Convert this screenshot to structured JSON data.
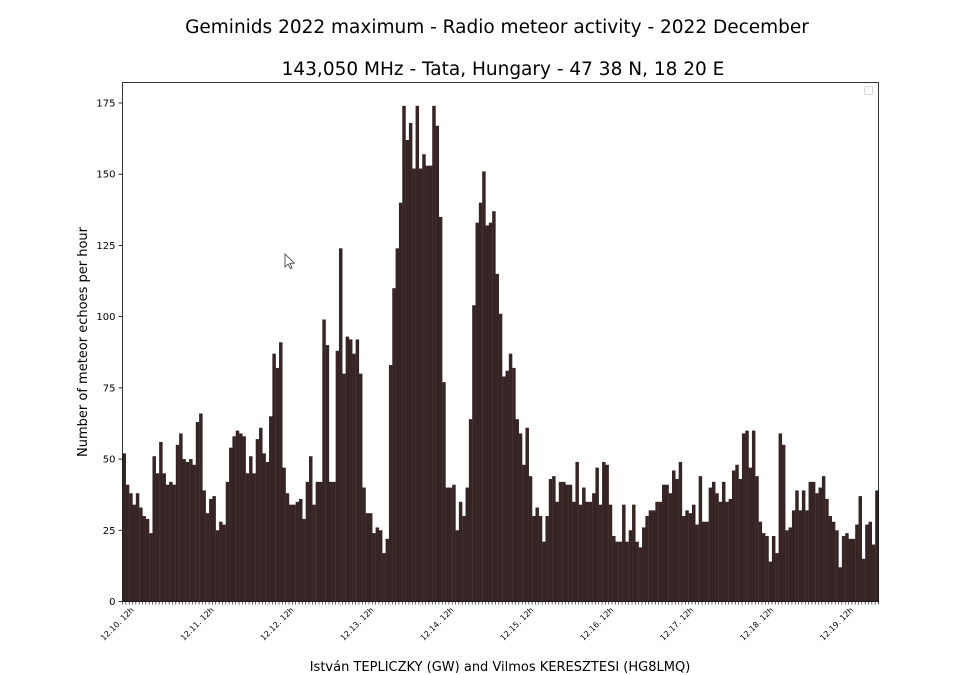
{
  "chart_data": {
    "type": "bar",
    "title": "Geminids 2022 maximum - Radio meteor activity - 2022 December",
    "subtitle": "143,050 MHz - Tata, Hungary - 47 38 N, 18 20 E",
    "xlabel": "István TEPLICZKY (GW) and Vilmos KERESZTESI (HG8LMQ)",
    "ylabel": "Number of meteor echoes per hour",
    "ylim": [
      0,
      175
    ],
    "yticks": [
      0,
      25,
      50,
      75,
      100,
      125,
      150,
      175
    ],
    "xticks": [
      "12.10. 12h",
      "12.11. 12h",
      "12.12. 12h",
      "12.13. 12h",
      "12.14. 12h",
      "12.15. 12h",
      "12.16. 12h",
      "12.17. 12h",
      "12.18. 12h",
      "12.19. 12h"
    ],
    "xtick_bar_index": [
      0,
      24,
      48,
      72,
      96,
      120,
      144,
      168,
      192,
      216
    ],
    "legend": "top-right (empty)",
    "bar_color": "#362524",
    "values": [
      52,
      41,
      38,
      34,
      38,
      33,
      30,
      29,
      24,
      51,
      45,
      56,
      45,
      41,
      42,
      41,
      55,
      59,
      50,
      49,
      50,
      48,
      63,
      66,
      39,
      31,
      36,
      37,
      25,
      28,
      27,
      42,
      54,
      58,
      60,
      59,
      58,
      45,
      51,
      45,
      57,
      61,
      52,
      49,
      65,
      87,
      82,
      91,
      47,
      38,
      34,
      34,
      35,
      36,
      29,
      42,
      51,
      34,
      42,
      42,
      99,
      90,
      42,
      42,
      88,
      124,
      80,
      93,
      92,
      87,
      92,
      80,
      40,
      31,
      31,
      24,
      26,
      25,
      17,
      22,
      83,
      110,
      124,
      140,
      174,
      162,
      168,
      152,
      174,
      152,
      157,
      153,
      153,
      174,
      167,
      135,
      77,
      40,
      40,
      41,
      25,
      35,
      30,
      40,
      64,
      104,
      133,
      140,
      151,
      132,
      133,
      137,
      115,
      101,
      79,
      81,
      87,
      82,
      64,
      59,
      48,
      61,
      44,
      30,
      33,
      30,
      21,
      30,
      43,
      44,
      35,
      42,
      42,
      41,
      41,
      35,
      49,
      34,
      40,
      35,
      35,
      38,
      47,
      34,
      49,
      48,
      34,
      23,
      21,
      21,
      34,
      21,
      25,
      34,
      21,
      19,
      26,
      30,
      32,
      32,
      35,
      35,
      41,
      41,
      38,
      46,
      43,
      49,
      30,
      32,
      31,
      34,
      27,
      44,
      28,
      28,
      40,
      42,
      38,
      35,
      42,
      35,
      36,
      46,
      48,
      43,
      59,
      60,
      47,
      60,
      44,
      28,
      24,
      23,
      14,
      23,
      17,
      59,
      55,
      25,
      26,
      32,
      39,
      32,
      39,
      32,
      42,
      42,
      38,
      40,
      44,
      36,
      30,
      28,
      25,
      12,
      23,
      24,
      22,
      22,
      27,
      37,
      15,
      27,
      28,
      20,
      39
    ]
  }
}
